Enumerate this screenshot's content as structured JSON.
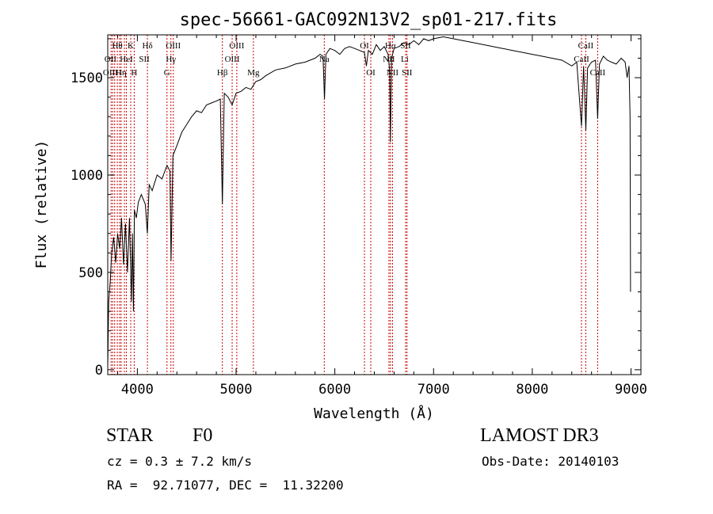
{
  "chart_data": {
    "type": "line",
    "title": "spec-56661-GAC092N13V2_sp01-217.fits",
    "xlabel": "Wavelength (Å)",
    "ylabel": "Flux (relative)",
    "xlim": [
      3700,
      9100
    ],
    "ylim": [
      -25,
      1720
    ],
    "xticks": [
      4000,
      5000,
      6000,
      7000,
      8000,
      9000
    ],
    "yticks": [
      0,
      500,
      1000,
      1500
    ],
    "xtick_labels": [
      "4000",
      "5000",
      "6000",
      "7000",
      "8000",
      "9000"
    ],
    "ytick_labels": [
      "0",
      "500",
      "1000",
      "1500"
    ],
    "series": [
      {
        "name": "flux",
        "x": [
          3700,
          3710,
          3725,
          3740,
          3760,
          3780,
          3800,
          3820,
          3840,
          3860,
          3880,
          3900,
          3920,
          3940,
          3950,
          3960,
          3970,
          3990,
          4010,
          4040,
          4080,
          4101,
          4120,
          4150,
          4200,
          4250,
          4300,
          4330,
          4341,
          4360,
          4400,
          4450,
          4500,
          4550,
          4600,
          4650,
          4700,
          4750,
          4800,
          4840,
          4861,
          4880,
          4920,
          4960,
          5000,
          5050,
          5100,
          5150,
          5200,
          5250,
          5300,
          5400,
          5500,
          5600,
          5700,
          5800,
          5850,
          5880,
          5895,
          5910,
          5950,
          6000,
          6050,
          6100,
          6150,
          6200,
          6250,
          6300,
          6320,
          6340,
          6380,
          6420,
          6460,
          6500,
          6540,
          6555,
          6563,
          6575,
          6600,
          6650,
          6700,
          6750,
          6800,
          6850,
          6900,
          6950,
          7000,
          7100,
          7200,
          7300,
          7400,
          7500,
          7600,
          7700,
          7800,
          7900,
          8000,
          8100,
          8200,
          8300,
          8400,
          8450,
          8498,
          8520,
          8542,
          8560,
          8600,
          8640,
          8662,
          8680,
          8720,
          8760,
          8800,
          8850,
          8900,
          8940,
          8960,
          8980,
          8990,
          8995
        ],
        "y": [
          10,
          350,
          450,
          600,
          680,
          550,
          700,
          620,
          780,
          540,
          750,
          500,
          780,
          350,
          700,
          300,
          820,
          780,
          860,
          900,
          850,
          700,
          950,
          920,
          1000,
          980,
          1050,
          1020,
          560,
          1100,
          1150,
          1220,
          1260,
          1300,
          1330,
          1320,
          1360,
          1370,
          1380,
          1390,
          850,
          1420,
          1400,
          1360,
          1420,
          1430,
          1450,
          1440,
          1480,
          1490,
          1510,
          1540,
          1550,
          1570,
          1580,
          1600,
          1620,
          1610,
          1390,
          1620,
          1650,
          1640,
          1620,
          1650,
          1660,
          1650,
          1640,
          1630,
          1560,
          1640,
          1620,
          1670,
          1640,
          1660,
          1620,
          1540,
          1170,
          1600,
          1650,
          1660,
          1680,
          1670,
          1690,
          1670,
          1700,
          1690,
          1700,
          1710,
          1700,
          1690,
          1680,
          1670,
          1660,
          1650,
          1640,
          1630,
          1620,
          1610,
          1600,
          1590,
          1560,
          1580,
          1250,
          1560,
          1230,
          1550,
          1580,
          1590,
          1290,
          1570,
          1610,
          1590,
          1580,
          1570,
          1600,
          1580,
          1500,
          1560,
          1300,
          400
        ]
      }
    ],
    "lines_x": [
      3734,
      3750,
      3770,
      3797,
      3820,
      3835,
      3869,
      3889,
      3933,
      3968,
      4102,
      4300,
      4340,
      4364,
      4861,
      4960,
      5007,
      5175,
      5893,
      6300,
      6364,
      6548,
      6563,
      6584,
      6717,
      6731,
      8498,
      8542,
      8662
    ],
    "line_labels": [
      {
        "text": "Hθ",
        "x": 3797,
        "row": 1
      },
      {
        "text": "K",
        "x": 3933,
        "row": 1
      },
      {
        "text": "Hδ",
        "x": 4102,
        "row": 1
      },
      {
        "text": "OIII",
        "x": 4364,
        "row": 1
      },
      {
        "text": "OIII",
        "x": 5007,
        "row": 1
      },
      {
        "text": "OI",
        "x": 6300,
        "row": 1
      },
      {
        "text": "Hα",
        "x": 6563,
        "row": 1
      },
      {
        "text": "SII",
        "x": 6717,
        "row": 1
      },
      {
        "text": "CaII",
        "x": 8542,
        "row": 1
      },
      {
        "text": "OII",
        "x": 3727,
        "row": 2
      },
      {
        "text": "HeI",
        "x": 3889,
        "row": 2
      },
      {
        "text": "SII",
        "x": 4070,
        "row": 2
      },
      {
        "text": "Hγ",
        "x": 4340,
        "row": 2
      },
      {
        "text": "OIII",
        "x": 4960,
        "row": 2
      },
      {
        "text": "Na",
        "x": 5893,
        "row": 2
      },
      {
        "text": "NII",
        "x": 6548,
        "row": 2
      },
      {
        "text": "Li",
        "x": 6708,
        "row": 2
      },
      {
        "text": "CaII",
        "x": 8498,
        "row": 2
      },
      {
        "text": "OIII",
        "x": 3727,
        "row": 3
      },
      {
        "text": "Hη",
        "x": 3835,
        "row": 3
      },
      {
        "text": "H",
        "x": 3968,
        "row": 3
      },
      {
        "text": "G",
        "x": 4300,
        "row": 3
      },
      {
        "text": "Hβ",
        "x": 4861,
        "row": 3
      },
      {
        "text": "Mg",
        "x": 5175,
        "row": 3
      },
      {
        "text": "OI",
        "x": 6364,
        "row": 3
      },
      {
        "text": "NII",
        "x": 6584,
        "row": 3
      },
      {
        "text": "SII",
        "x": 6731,
        "row": 3
      },
      {
        "text": "CaII",
        "x": 8662,
        "row": 3
      }
    ]
  },
  "info": {
    "object_class": "STAR",
    "subclass": "F0",
    "survey": "LAMOST DR3",
    "cz": "cz = 0.3 ± 7.2 km/s",
    "obs_date": "Obs-Date: 20140103",
    "coords": "RA =  92.71077, DEC =  11.32200"
  },
  "colors": {
    "line_marker": "#cc0000",
    "spectrum": "#000000",
    "axes": "#000000"
  }
}
